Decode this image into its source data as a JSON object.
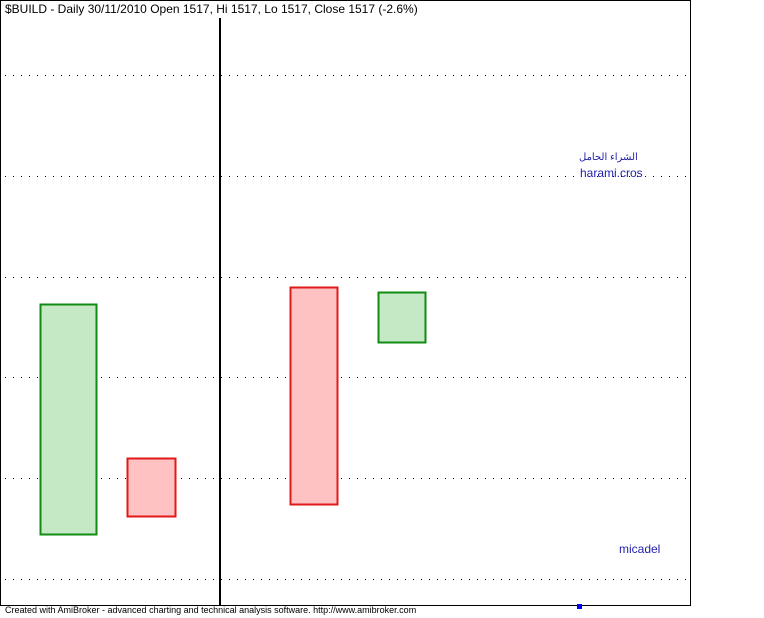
{
  "header": {
    "title": "$BUILD - Daily 30/11/2010 Open 1517, Hi 1517, Lo 1517, Close 1517 (-2.6%)"
  },
  "annotations": {
    "arabic_label": "الشراء الحامل",
    "pattern_label": "harami.cros",
    "author_label": "micadel"
  },
  "footer": {
    "text": "Created with AmiBroker - advanced charting and technical analysis software. http://www.amibroker.com"
  },
  "colors": {
    "bull_fill": "#c5e8c5",
    "bull_stroke": "#118b11",
    "bear_fill": "#ffc2c2",
    "bear_stroke": "#e01818",
    "grid": "#000000",
    "annotation": "#1f1fa8",
    "marker": "#0000ff"
  },
  "chart_data": {
    "type": "candlestick",
    "title": "$BUILD - Daily 30/11/2010 Open 1517, Hi 1517, Lo 1517, Close 1517 (-2.6%)",
    "ylim": [
      0,
      5.4
    ],
    "grid": true,
    "candles": [
      {
        "direction": "up",
        "open": 0.45,
        "close": 2.73
      },
      {
        "direction": "down",
        "open": 1.2,
        "close": 0.62
      },
      {
        "direction": "down",
        "open": 2.9,
        "close": 0.75
      },
      {
        "direction": "up",
        "open": 2.35,
        "close": 2.85
      }
    ],
    "gridlines": [
      0.0,
      1.0,
      2.0,
      3.0,
      4.0,
      5.0
    ]
  }
}
